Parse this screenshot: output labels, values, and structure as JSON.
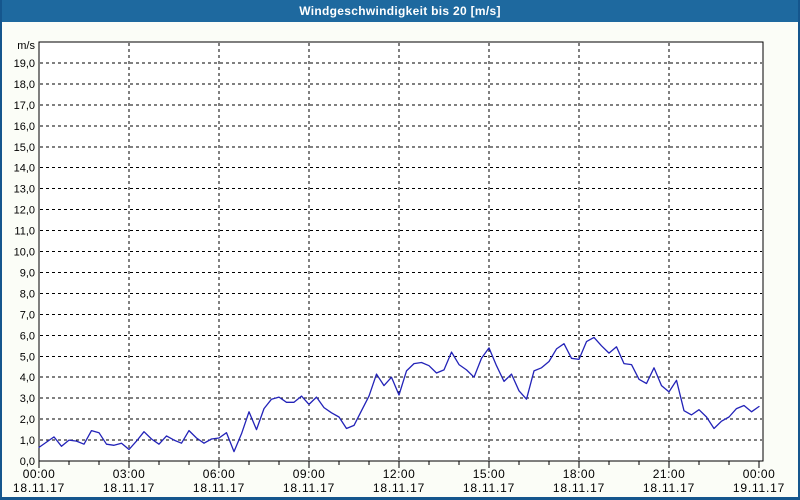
{
  "window": {
    "title": "Windgeschwindigkeit bis 20 [m/s]"
  },
  "colors": {
    "titlebar_bg": "#1e699f",
    "titlebar_text": "#ffffff",
    "frame_border": "#15568d",
    "page_bg": "#fbfdf7",
    "plot_bg": "#ffffff",
    "grid": "#000000",
    "axis": "#000000",
    "tick_label": "#000000",
    "line": "#2323b8"
  },
  "chart_data": {
    "type": "line",
    "title": "Windgeschwindigkeit bis 20 [m/s]",
    "unit_label": "m/s",
    "ylim": [
      0,
      20
    ],
    "ytick_step": 1,
    "ytick_labels": [
      "0,0",
      "1,0",
      "2,0",
      "3,0",
      "4,0",
      "5,0",
      "6,0",
      "7,0",
      "8,0",
      "9,0",
      "10,0",
      "11,0",
      "12,0",
      "13,0",
      "14,0",
      "15,0",
      "16,0",
      "17,0",
      "18,0",
      "19,0"
    ],
    "grid": "dashed",
    "legend_position": "none",
    "x_hours_range": [
      0,
      24
    ],
    "xtick_minor_interval_hours": 1,
    "xticks_major": [
      {
        "hour": 0,
        "time": "00:00",
        "date": "18.11.17"
      },
      {
        "hour": 3,
        "time": "03:00",
        "date": "18.11.17"
      },
      {
        "hour": 6,
        "time": "06:00",
        "date": "18.11.17"
      },
      {
        "hour": 9,
        "time": "09:00",
        "date": "18.11.17"
      },
      {
        "hour": 12,
        "time": "12:00",
        "date": "18.11.17"
      },
      {
        "hour": 15,
        "time": "15:00",
        "date": "18.11.17"
      },
      {
        "hour": 18,
        "time": "18:00",
        "date": "18.11.17"
      },
      {
        "hour": 21,
        "time": "21:00",
        "date": "18.11.17"
      },
      {
        "hour": 24,
        "time": "00:00",
        "date": "19.11.17"
      }
    ],
    "series": [
      {
        "name": "Windgeschwindigkeit",
        "unit": "m/s",
        "x_start_hour": 0,
        "x_step_hours": 0.25,
        "values": [
          0.65,
          0.9,
          1.15,
          0.7,
          1.0,
          0.95,
          0.8,
          1.45,
          1.35,
          0.8,
          0.75,
          0.85,
          0.55,
          0.95,
          1.4,
          1.05,
          0.8,
          1.2,
          1.0,
          0.85,
          1.45,
          1.1,
          0.85,
          1.05,
          1.1,
          1.35,
          0.45,
          1.3,
          2.35,
          1.5,
          2.5,
          2.95,
          3.05,
          2.8,
          2.8,
          3.1,
          2.7,
          3.05,
          2.55,
          2.3,
          2.1,
          1.55,
          1.7,
          2.4,
          3.1,
          4.15,
          3.6,
          4.0,
          3.15,
          4.3,
          4.65,
          4.7,
          4.55,
          4.2,
          4.35,
          5.2,
          4.6,
          4.35,
          4.0,
          4.9,
          5.4,
          4.55,
          3.8,
          4.15,
          3.35,
          2.95,
          4.3,
          4.45,
          4.75,
          5.35,
          5.6,
          4.9,
          4.85,
          5.7,
          5.9,
          5.5,
          5.15,
          5.45,
          4.65,
          4.6,
          3.9,
          3.7,
          4.45,
          3.6,
          3.3,
          3.85,
          2.4,
          2.2,
          2.45,
          2.1,
          1.55,
          1.9,
          2.1,
          2.5,
          2.65,
          2.35,
          2.6
        ]
      }
    ]
  }
}
